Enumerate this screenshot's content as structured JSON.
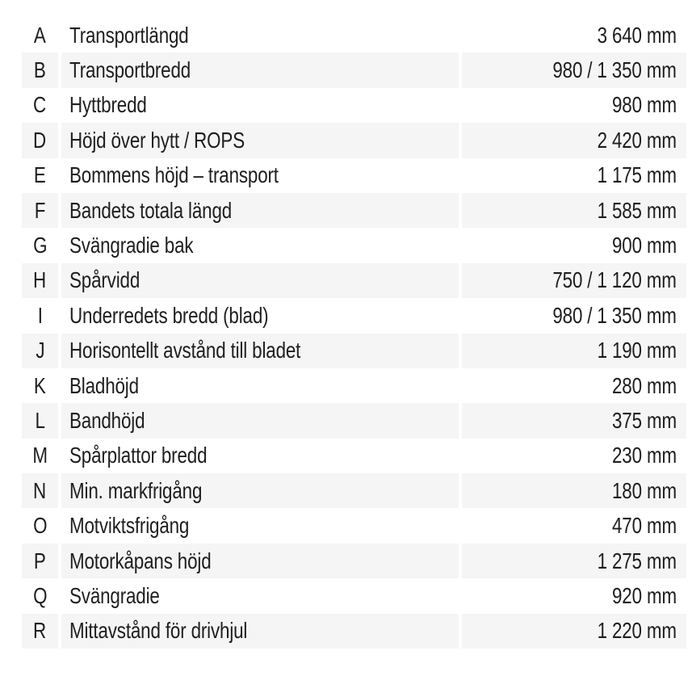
{
  "table": {
    "colors": {
      "background": "#ffffff",
      "stripe": "#f5f5f5",
      "text": "#1e1e1e"
    },
    "rows": [
      {
        "letter": "A",
        "label": "Transportlängd",
        "value": "3 640 mm"
      },
      {
        "letter": "B",
        "label": "Transportbredd",
        "value": "980 / 1 350 mm"
      },
      {
        "letter": "C",
        "label": "Hyttbredd",
        "value": "980 mm"
      },
      {
        "letter": "D",
        "label": "Höjd över hytt / ROPS",
        "value": "2 420 mm"
      },
      {
        "letter": "E",
        "label": "Bommens höjd – transport",
        "value": "1 175 mm"
      },
      {
        "letter": "F",
        "label": "Bandets totala längd",
        "value": "1 585 mm"
      },
      {
        "letter": "G",
        "label": "Svängradie bak",
        "value": "900 mm"
      },
      {
        "letter": "H",
        "label": "Spårvidd",
        "value": "750 / 1 120 mm"
      },
      {
        "letter": "I",
        "label": "Underredets bredd (blad)",
        "value": "980 / 1 350 mm"
      },
      {
        "letter": "J",
        "label": "Horisontellt avstånd till bladet",
        "value": "1 190 mm"
      },
      {
        "letter": "K",
        "label": "Bladhöjd",
        "value": "280 mm"
      },
      {
        "letter": "L",
        "label": "Bandhöjd",
        "value": "375 mm"
      },
      {
        "letter": "M",
        "label": "Spårplattor bredd",
        "value": "230 mm"
      },
      {
        "letter": "N",
        "label": "Min. markfrigång",
        "value": "180 mm"
      },
      {
        "letter": "O",
        "label": "Motviktsfrigång",
        "value": "470 mm"
      },
      {
        "letter": "P",
        "label": "Motorkåpans höjd",
        "value": "1 275 mm"
      },
      {
        "letter": "Q",
        "label": "Svängradie",
        "value": "920 mm"
      },
      {
        "letter": "R",
        "label": "Mittavstånd för drivhjul",
        "value": "1 220 mm"
      }
    ]
  }
}
